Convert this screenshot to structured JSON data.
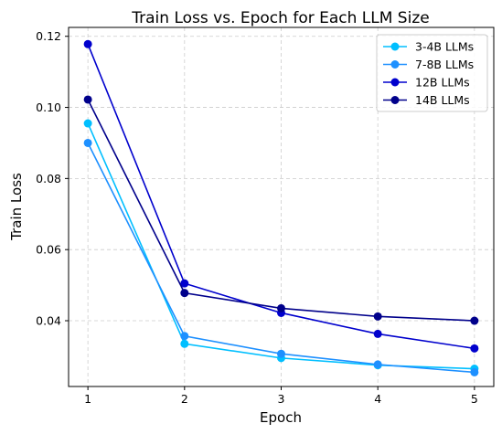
{
  "chart_data": {
    "type": "line",
    "title": "Train Loss vs. Epoch for Each LLM Size",
    "xlabel": "Epoch",
    "ylabel": "Train Loss",
    "x": [
      1,
      2,
      3,
      4,
      5
    ],
    "x_ticks": [
      "1",
      "2",
      "3",
      "4",
      "5"
    ],
    "y_ticks": [
      "0.04",
      "0.06",
      "0.08",
      "0.10",
      "0.12"
    ],
    "y_tick_values": [
      0.04,
      0.06,
      0.08,
      0.1,
      0.12
    ],
    "xlim": [
      0.8,
      5.2
    ],
    "ylim": [
      0.0215,
      0.1225
    ],
    "grid": true,
    "legend_position": "top-right",
    "series": [
      {
        "name": "3-4B LLMs",
        "color": "#00bfff",
        "values": [
          0.0955,
          0.0335,
          0.0295,
          0.0275,
          0.0265
        ]
      },
      {
        "name": "7-8B LLMs",
        "color": "#1e90ff",
        "values": [
          0.09,
          0.0357,
          0.0307,
          0.0277,
          0.0255
        ]
      },
      {
        "name": "12B LLMs",
        "color": "#0000cd",
        "values": [
          0.1178,
          0.0505,
          0.0422,
          0.0363,
          0.0322
        ]
      },
      {
        "name": "14B LLMs",
        "color": "#00008b",
        "values": [
          0.1022,
          0.0478,
          0.0435,
          0.0412,
          0.04
        ]
      }
    ]
  }
}
